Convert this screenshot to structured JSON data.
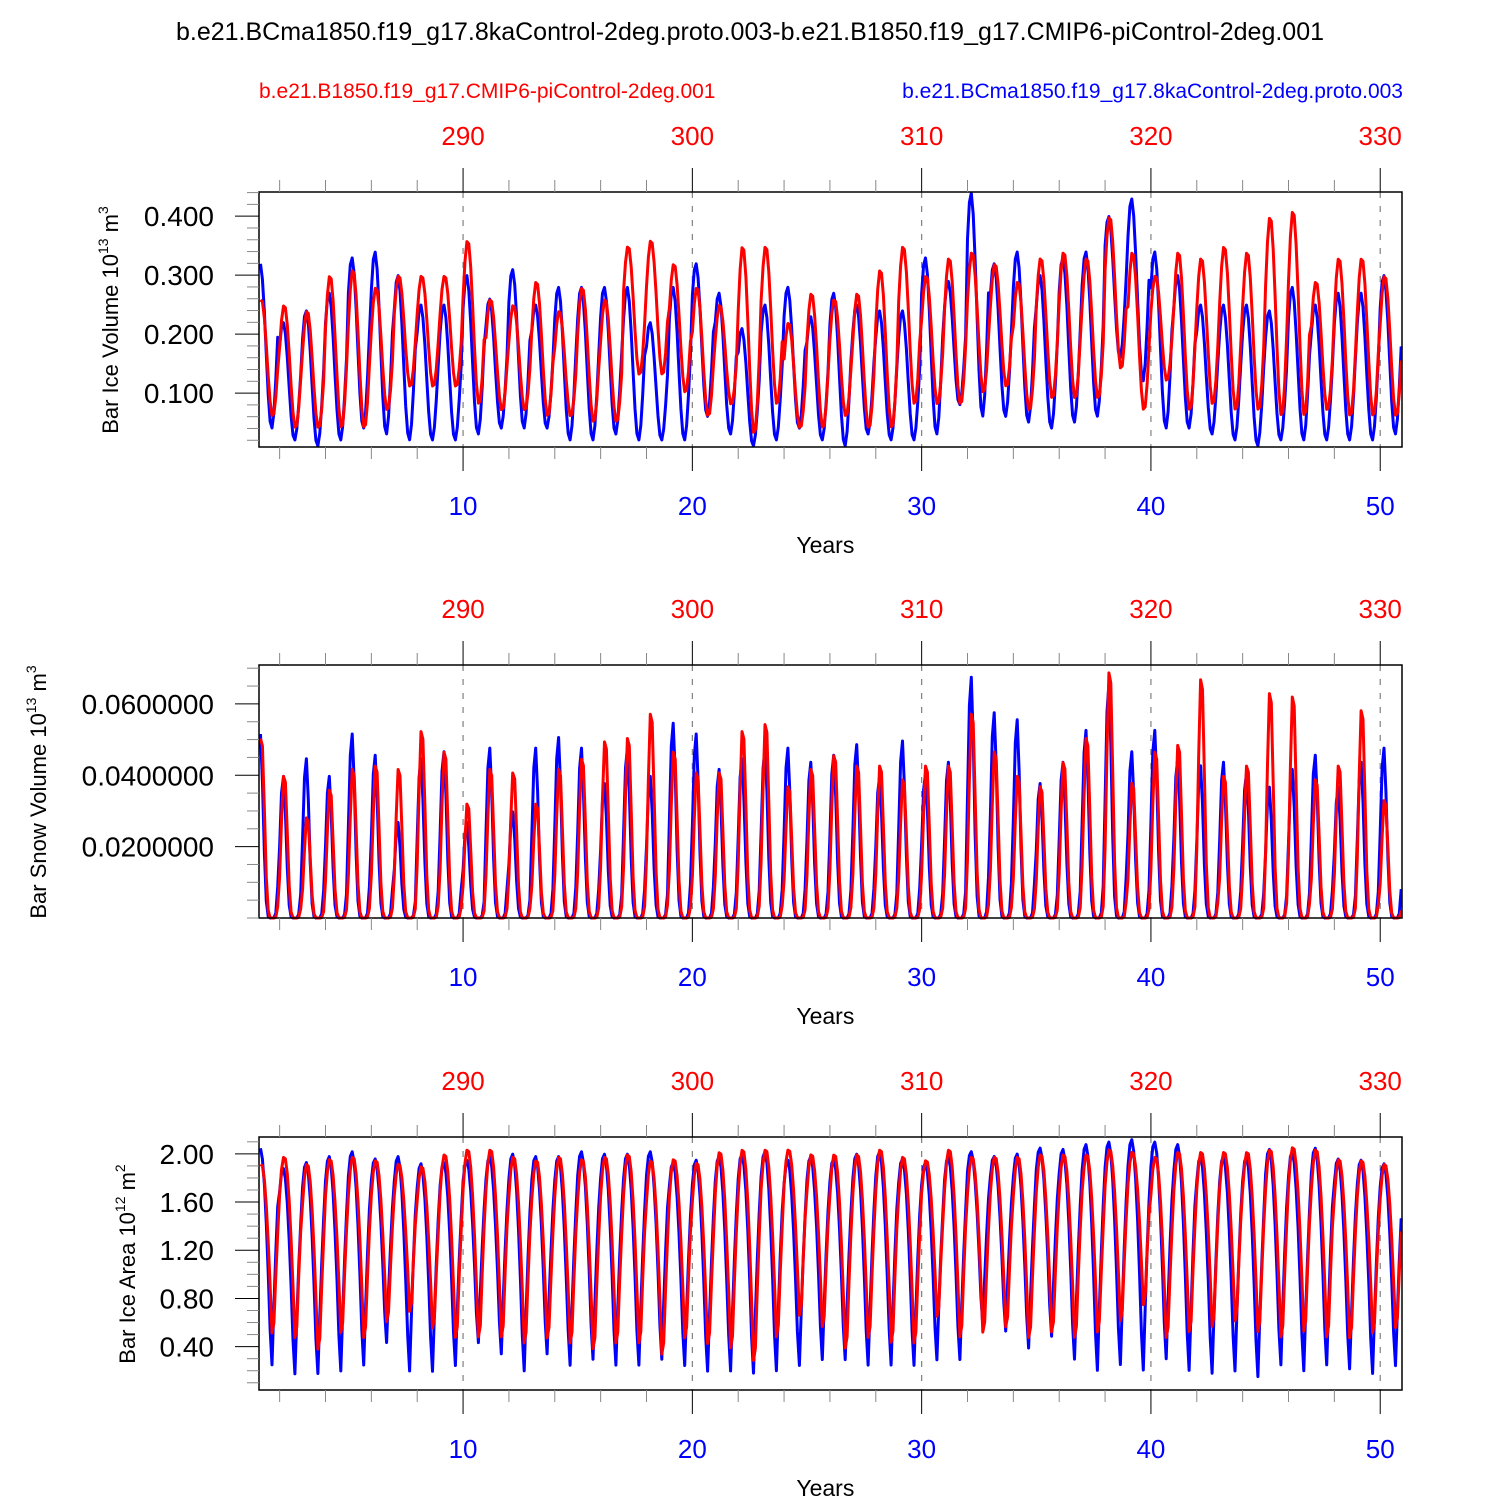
{
  "title": "b.e21.BCma1850.f19_g17.8kaControl-2deg.proto.003-b.e21.B1850.f19_g17.CMIP6-piControl-2deg.001",
  "legend": [
    {
      "name": "b.e21.B1850.f19_g17.CMIP6-piControl-2deg.001",
      "color": "#ff0000",
      "position": "top-left"
    },
    {
      "name": "b.e21.BCma1850.f19_g17.8kaControl-2deg.proto.003",
      "color": "#0000ff",
      "position": "top-right"
    }
  ],
  "colors": {
    "control": "#ff0000",
    "experiment": "#0000ff",
    "axis": "#000000",
    "gridline": "#808080"
  },
  "chart_data": [
    {
      "type": "line",
      "title": "",
      "xlabel": "Years",
      "ylabel": "Bar Ice Volume 10^13 m^3",
      "ylabel_parts": {
        "base": "Bar Ice Volume 10",
        "exp1": "13",
        "unit": " m",
        "exp2": "3"
      },
      "xlim": [
        1.1,
        50.95
      ],
      "ylim": [
        0.0086,
        0.441
      ],
      "x_ticks": [
        10,
        20,
        30,
        40,
        50
      ],
      "x_tick_labels": [
        "10",
        "20",
        "30",
        "40",
        "50"
      ],
      "top_x_ticks": [
        290,
        300,
        310,
        320,
        330
      ],
      "top_x_tick_labels": [
        "290",
        "300",
        "310",
        "320",
        "330"
      ],
      "top_axis_offset": 280,
      "y_ticks": [
        0.1,
        0.2,
        0.3,
        0.4
      ],
      "y_tick_labels": [
        "0.100",
        "0.200",
        "0.300",
        "0.400"
      ],
      "y_minor_step": 0.02,
      "grid": "dashed vertical at major x ticks",
      "series": [
        {
          "name": "b.e21.BCma1850.f19_g17.8kaControl-2deg.proto.003",
          "color": "#0000ff",
          "annual_max": [
            0.32,
            0.22,
            0.24,
            0.27,
            0.33,
            0.34,
            0.3,
            0.25,
            0.25,
            0.3,
            0.26,
            0.31,
            0.25,
            0.28,
            0.28,
            0.28,
            0.28,
            0.22,
            0.28,
            0.32,
            0.27,
            0.21,
            0.25,
            0.28,
            0.23,
            0.27,
            0.25,
            0.24,
            0.24,
            0.33,
            0.29,
            0.44,
            0.32,
            0.34,
            0.3,
            0.33,
            0.34,
            0.4,
            0.43,
            0.34,
            0.3,
            0.25,
            0.25,
            0.25,
            0.24,
            0.28,
            0.25,
            0.27,
            0.27,
            0.3
          ],
          "annual_min": [
            0.04,
            0.02,
            0.01,
            0.02,
            0.04,
            0.03,
            0.02,
            0.02,
            0.02,
            0.03,
            0.04,
            0.04,
            0.04,
            0.02,
            0.02,
            0.03,
            0.02,
            0.02,
            0.02,
            0.06,
            0.03,
            0.01,
            0.02,
            0.04,
            0.02,
            0.01,
            0.03,
            0.02,
            0.02,
            0.03,
            0.08,
            0.06,
            0.06,
            0.05,
            0.04,
            0.05,
            0.06,
            0.16,
            0.12,
            0.04,
            0.04,
            0.03,
            0.02,
            0.01,
            0.02,
            0.02,
            0.02,
            0.02,
            0.02,
            0.03
          ]
        },
        {
          "name": "b.e21.B1850.f19_g17.CMIP6-piControl-2deg.001",
          "color": "#ff0000",
          "annual_max": [
            0.26,
            0.25,
            0.24,
            0.3,
            0.31,
            0.28,
            0.3,
            0.3,
            0.3,
            0.36,
            0.26,
            0.25,
            0.29,
            0.24,
            0.28,
            0.26,
            0.35,
            0.36,
            0.32,
            0.28,
            0.25,
            0.35,
            0.35,
            0.22,
            0.27,
            0.26,
            0.27,
            0.31,
            0.35,
            0.3,
            0.33,
            0.34,
            0.32,
            0.29,
            0.33,
            0.34,
            0.33,
            0.4,
            0.34,
            0.3,
            0.34,
            0.33,
            0.35,
            0.34,
            0.4,
            0.41,
            0.29,
            0.33,
            0.33,
            0.3
          ],
          "annual_min": [
            0.06,
            0.04,
            0.04,
            0.04,
            0.04,
            0.07,
            0.11,
            0.11,
            0.11,
            0.08,
            0.07,
            0.07,
            0.06,
            0.06,
            0.05,
            0.05,
            0.13,
            0.13,
            0.1,
            0.06,
            0.08,
            0.03,
            0.08,
            0.04,
            0.04,
            0.06,
            0.04,
            0.04,
            0.08,
            0.08,
            0.08,
            0.1,
            0.11,
            0.07,
            0.09,
            0.09,
            0.09,
            0.14,
            0.07,
            0.12,
            0.07,
            0.08,
            0.07,
            0.07,
            0.06,
            0.06,
            0.07,
            0.06,
            0.06,
            0.06
          ]
        }
      ]
    },
    {
      "type": "line",
      "title": "",
      "xlabel": "Years",
      "ylabel": "Bar Snow Volume 10^13 m^3",
      "ylabel_parts": {
        "base": "Bar Snow Volume 10",
        "exp1": "13",
        "unit": " m",
        "exp2": "3"
      },
      "xlim": [
        1.1,
        50.95
      ],
      "ylim": [
        0.0,
        0.0709
      ],
      "x_ticks": [
        10,
        20,
        30,
        40,
        50
      ],
      "x_tick_labels": [
        "10",
        "20",
        "30",
        "40",
        "50"
      ],
      "top_x_ticks": [
        290,
        300,
        310,
        320,
        330
      ],
      "top_x_tick_labels": [
        "290",
        "300",
        "310",
        "320",
        "330"
      ],
      "top_axis_offset": 280,
      "y_ticks": [
        0.02,
        0.04,
        0.06
      ],
      "y_tick_labels": [
        "0.0200000",
        "0.0400000",
        "0.0600000"
      ],
      "y_minor_step": 0.005,
      "grid": "dashed vertical at major x ticks",
      "series": [
        {
          "name": "b.e21.BCma1850.f19_g17.8kaControl-2deg.proto.003",
          "color": "#0000ff",
          "annual_max": [
            0.052,
            0.04,
            0.045,
            0.04,
            0.052,
            0.046,
            0.027,
            0.045,
            0.047,
            0.027,
            0.048,
            0.03,
            0.048,
            0.051,
            0.048,
            0.038,
            0.048,
            0.04,
            0.055,
            0.052,
            0.042,
            0.045,
            0.048,
            0.048,
            0.044,
            0.046,
            0.049,
            0.04,
            0.05,
            0.041,
            0.044,
            0.068,
            0.058,
            0.056,
            0.038,
            0.044,
            0.053,
            0.066,
            0.047,
            0.053,
            0.045,
            0.043,
            0.044,
            0.041,
            0.037,
            0.042,
            0.046,
            0.037,
            0.044,
            0.048
          ],
          "annual_min": [
            0,
            0,
            0,
            0,
            0,
            0,
            0,
            0,
            0,
            0,
            0,
            0,
            0,
            0,
            0,
            0,
            0,
            0,
            0,
            0,
            0,
            0,
            0,
            0,
            0,
            0,
            0,
            0,
            0,
            0,
            0,
            0,
            0,
            0,
            0,
            0,
            0,
            0,
            0,
            0,
            0,
            0,
            0,
            0,
            0,
            0,
            0,
            0,
            0,
            0
          ]
        },
        {
          "name": "b.e21.B1850.f19_g17.CMIP6-piControl-2deg.001",
          "color": "#ff0000",
          "annual_max": [
            0.052,
            0.041,
            0.029,
            0.037,
            0.043,
            0.044,
            0.043,
            0.054,
            0.048,
            0.033,
            0.043,
            0.042,
            0.033,
            0.043,
            0.046,
            0.051,
            0.052,
            0.059,
            0.048,
            0.042,
            0.042,
            0.054,
            0.056,
            0.038,
            0.043,
            0.047,
            0.044,
            0.044,
            0.04,
            0.044,
            0.044,
            0.059,
            0.048,
            0.041,
            0.038,
            0.045,
            0.052,
            0.071,
            0.039,
            0.048,
            0.05,
            0.069,
            0.041,
            0.044,
            0.065,
            0.064,
            0.04,
            0.044,
            0.06,
            0.034
          ],
          "annual_min": [
            0,
            0,
            0,
            0,
            0,
            0,
            0,
            0,
            0,
            0,
            0,
            0,
            0,
            0,
            0,
            0,
            0,
            0,
            0,
            0,
            0,
            0,
            0,
            0,
            0,
            0,
            0,
            0,
            0,
            0,
            0,
            0,
            0,
            0,
            0,
            0,
            0,
            0,
            0,
            0,
            0,
            0,
            0,
            0,
            0,
            0,
            0,
            0,
            0,
            0
          ]
        }
      ]
    },
    {
      "type": "line",
      "title": "",
      "xlabel": "Years",
      "ylabel": "Bar Ice Area 10^12 m^2",
      "ylabel_parts": {
        "base": "Bar Ice Area 10",
        "exp1": "12",
        "unit": " m",
        "exp2": "2"
      },
      "xlim": [
        1.1,
        50.95
      ],
      "ylim": [
        0.04,
        2.14
      ],
      "x_ticks": [
        10,
        20,
        30,
        40,
        50
      ],
      "x_tick_labels": [
        "10",
        "20",
        "30",
        "40",
        "50"
      ],
      "top_x_ticks": [
        290,
        300,
        310,
        320,
        330
      ],
      "top_x_tick_labels": [
        "290",
        "300",
        "310",
        "320",
        "330"
      ],
      "top_axis_offset": 280,
      "y_ticks": [
        0.4,
        0.8,
        1.2,
        1.6,
        2.0
      ],
      "y_tick_labels": [
        "0.40",
        "0.80",
        "1.20",
        "1.60",
        "2.00"
      ],
      "y_minor_step": 0.1,
      "grid": "dashed vertical at major x ticks",
      "series": [
        {
          "name": "b.e21.BCma1850.f19_g17.8kaControl-2deg.proto.003",
          "color": "#0000ff",
          "annual_max": [
            2.05,
            1.88,
            1.93,
            1.98,
            2.02,
            1.96,
            1.98,
            1.92,
            1.93,
            1.95,
            1.98,
            2.0,
            1.98,
            1.98,
            2.02,
            2.0,
            2.0,
            2.02,
            1.93,
            1.95,
            1.98,
            2.0,
            2.02,
            1.95,
            1.98,
            1.96,
            2.0,
            2.02,
            1.96,
            1.93,
            1.98,
            2.02,
            1.98,
            2.0,
            2.05,
            2.04,
            2.08,
            2.1,
            2.12,
            2.1,
            2.08,
            1.98,
            1.98,
            1.98,
            2.04,
            2.02,
            2.05,
            1.96,
            1.95,
            1.92
          ],
          "annual_min": [
            0.15,
            0.08,
            0.08,
            0.1,
            0.15,
            0.35,
            0.1,
            0.1,
            0.15,
            0.35,
            0.25,
            0.1,
            0.25,
            0.15,
            0.2,
            0.15,
            0.15,
            0.2,
            0.15,
            0.1,
            0.1,
            0.08,
            0.1,
            0.15,
            0.2,
            0.2,
            0.15,
            0.15,
            0.15,
            0.2,
            0.2,
            0.5,
            0.45,
            0.3,
            0.4,
            0.2,
            0.1,
            0.15,
            0.1,
            0.2,
            0.1,
            0.08,
            0.1,
            0.05,
            0.15,
            0.1,
            0.15,
            0.12,
            0.08,
            0.15
          ]
        },
        {
          "name": "b.e21.B1850.f19_g17.CMIP6-piControl-2deg.001",
          "color": "#ff0000",
          "annual_max": [
            1.92,
            1.98,
            1.92,
            1.96,
            1.98,
            1.95,
            1.92,
            1.9,
            2.0,
            2.04,
            2.04,
            1.98,
            1.95,
            1.98,
            1.96,
            1.98,
            2.0,
            1.95,
            1.96,
            1.93,
            2.02,
            2.04,
            2.04,
            2.04,
            2.0,
            2.0,
            2.0,
            2.04,
            1.98,
            1.95,
            2.04,
            1.98,
            1.98,
            1.98,
            2.0,
            2.0,
            2.0,
            2.04,
            2.02,
            1.98,
            2.02,
            2.02,
            2.02,
            2.02,
            2.04,
            2.06,
            2.04,
            1.96,
            1.95,
            1.92
          ],
          "annual_min": [
            0.35,
            0.3,
            0.2,
            0.35,
            0.3,
            0.45,
            0.55,
            0.4,
            0.3,
            0.3,
            0.3,
            0.25,
            0.3,
            0.25,
            0.2,
            0.25,
            0.25,
            0.15,
            0.3,
            0.25,
            0.2,
            0.08,
            0.3,
            0.5,
            0.4,
            0.2,
            0.3,
            0.25,
            0.25,
            0.5,
            0.3,
            0.35,
            0.4,
            0.3,
            0.35,
            0.3,
            0.35,
            0.45,
            0.6,
            0.3,
            0.35,
            0.4,
            0.45,
            0.35,
            0.3,
            0.35,
            0.3,
            0.3,
            0.35,
            0.4
          ]
        }
      ]
    }
  ]
}
